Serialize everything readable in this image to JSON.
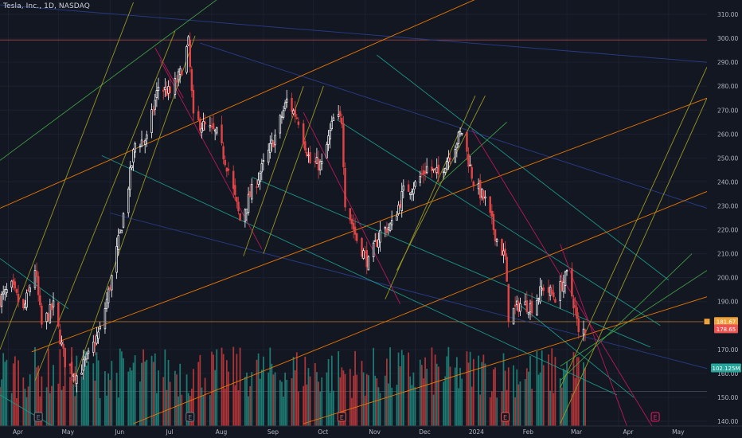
{
  "title": "Tesla, Inc., 1D, NASDAQ",
  "chart_data": {
    "type": "candlestick",
    "price_axis": {
      "ticks": [
        310,
        300,
        290,
        280,
        270,
        260,
        250,
        240,
        230,
        220,
        210,
        200,
        190,
        170,
        160,
        150,
        140
      ],
      "tick_labels": [
        "310.00",
        "300.00",
        "290.00",
        "280.00",
        "270.00",
        "260.00",
        "250.00",
        "240.00",
        "230.00",
        "220.00",
        "210.00",
        "200.00",
        "190.00",
        "170.00",
        "160.00",
        "150.00",
        "140.00"
      ],
      "range": [
        138,
        316
      ]
    },
    "time_axis": {
      "labels": [
        "Apr",
        "May",
        "Jun",
        "Jul",
        "Aug",
        "Sep",
        "Oct",
        "Nov",
        "Dec",
        "2024",
        "Feb",
        "Mar",
        "Apr",
        "May"
      ],
      "start": "2023-03-27",
      "end": "2024-05-24"
    },
    "badges": [
      {
        "text": "181.67",
        "color": "#f0a23a",
        "price": 181.67,
        "kind": "price"
      },
      {
        "text": "178.65",
        "color": "#ef5350",
        "price": 178.65,
        "kind": "price"
      },
      {
        "text": "102.125M",
        "color": "#26a69a",
        "price": 162.3,
        "kind": "volume"
      }
    ],
    "horizontal_levels": [
      {
        "price": 299.3,
        "color": "#b24a4a"
      },
      {
        "price": 181.6,
        "color": "#b8732d"
      },
      {
        "price": 152.5,
        "color": "#444a5a"
      }
    ],
    "earnings_markers": [
      {
        "date": "2023-04-19",
        "label": "E",
        "color": "#787b86"
      },
      {
        "date": "2023-07-19",
        "label": "E",
        "color": "#787b86"
      },
      {
        "date": "2023-10-18",
        "label": "E",
        "color": "#ef5350"
      },
      {
        "date": "2024-01-24",
        "label": "E",
        "color": "#ef5350"
      },
      {
        "date": "2024-04-23",
        "label": "E",
        "color": "#e91e63"
      }
    ],
    "trendlines": [
      {
        "color": "#2a3f8f",
        "p1": [
          "2023-03-27",
          314
        ],
        "p2": [
          "2024-05-24",
          290
        ]
      },
      {
        "color": "#2a3f8f",
        "p1": [
          "2023-07-25",
          298
        ],
        "p2": [
          "2024-05-24",
          229
        ]
      },
      {
        "color": "#2a3f8f",
        "p1": [
          "2023-06-01",
          227
        ],
        "p2": [
          "2024-05-24",
          162
        ]
      },
      {
        "color": "#1d9a8a",
        "p1": [
          "2023-03-27",
          208
        ],
        "p2": [
          "2023-05-07",
          187
        ]
      },
      {
        "color": "#1d9a8a",
        "p1": [
          "2023-05-27",
          251
        ],
        "p2": [
          "2024-03-31",
          151
        ]
      },
      {
        "color": "#1d9a8a",
        "p1": [
          "2023-11-08",
          293
        ],
        "p2": [
          "2024-05-01",
          199
        ]
      },
      {
        "color": "#1d9a8a",
        "p1": [
          "2023-10-15",
          266
        ],
        "p2": [
          "2024-04-26",
          180
        ]
      },
      {
        "color": "#1d9a8a",
        "p1": [
          "2023-03-27",
          151
        ],
        "p2": [
          "2023-05-05",
          135
        ]
      },
      {
        "color": "#1d9a8a",
        "p1": [
          "2024-02-01",
          189
        ],
        "p2": [
          "2024-04-10",
          150
        ]
      },
      {
        "color": "#1d9a8a",
        "p1": [
          "2023-08-25",
          242
        ],
        "p2": [
          "2024-04-20",
          171
        ]
      },
      {
        "color": "#43a047",
        "p1": [
          "2023-03-27",
          249
        ],
        "p2": [
          "2023-08-27",
          328
        ]
      },
      {
        "color": "#43a047",
        "p1": [
          "2023-12-15",
          239
        ],
        "p2": [
          "2024-01-25",
          265
        ]
      },
      {
        "color": "#43a047",
        "p1": [
          "2024-02-26",
          157
        ],
        "p2": [
          "2024-05-15",
          210
        ]
      },
      {
        "color": "#43a047",
        "p1": [
          "2024-02-26",
          163
        ],
        "p2": [
          "2024-05-24",
          203
        ]
      },
      {
        "color": "#f57c00",
        "p1": [
          "2023-03-27",
          229
        ],
        "p2": [
          "2024-02-20",
          330
        ]
      },
      {
        "color": "#f57c00",
        "p1": [
          "2023-04-15",
          169
        ],
        "p2": [
          "2024-05-24",
          275
        ]
      },
      {
        "color": "#f57c00",
        "p1": [
          "2023-06-15",
          139
        ],
        "p2": [
          "2024-05-24",
          236
        ]
      },
      {
        "color": "#f57c00",
        "p1": [
          "2023-09-25",
          139
        ],
        "p2": [
          "2024-05-24",
          192
        ]
      },
      {
        "color": "#c2185b",
        "p1": [
          "2023-07-01",
          291
        ],
        "p2": [
          "2023-08-31",
          212
        ]
      },
      {
        "color": "#c2185b",
        "p1": [
          "2023-09-25",
          269
        ],
        "p2": [
          "2023-11-22",
          189
        ]
      },
      {
        "color": "#c2185b",
        "p1": [
          "2024-01-04",
          262
        ],
        "p2": [
          "2024-04-21",
          138
        ]
      },
      {
        "color": "#c2185b",
        "p1": [
          "2024-02-26",
          214
        ],
        "p2": [
          "2024-04-06",
          138
        ]
      },
      {
        "color": "#c2185b",
        "p1": [
          "2023-06-28",
          296
        ],
        "p2": [
          "2023-07-15",
          275
        ]
      },
      {
        "color": "#9e9d24",
        "p1": [
          "2023-03-27",
          170
        ],
        "p2": [
          "2023-06-15",
          315
        ]
      },
      {
        "color": "#9e9d24",
        "p1": [
          "2023-04-17",
          157
        ],
        "p2": [
          "2023-07-10",
          303
        ]
      },
      {
        "color": "#9e9d24",
        "p1": [
          "2023-05-10",
          156
        ],
        "p2": [
          "2023-07-22",
          301
        ]
      },
      {
        "color": "#9e9d24",
        "p1": [
          "2023-08-20",
          209
        ],
        "p2": [
          "2023-09-25",
          280
        ]
      },
      {
        "color": "#9e9d24",
        "p1": [
          "2023-09-01",
          210
        ],
        "p2": [
          "2023-10-07",
          280
        ]
      },
      {
        "color": "#9e9d24",
        "p1": [
          "2023-11-13",
          191
        ],
        "p2": [
          "2024-01-06",
          276
        ]
      },
      {
        "color": "#9e9d24",
        "p1": [
          "2023-11-20",
          203
        ],
        "p2": [
          "2024-01-12",
          276
        ]
      },
      {
        "color": "#9e9d24",
        "p1": [
          "2024-02-26",
          154
        ],
        "p2": [
          "2024-05-24",
          288
        ]
      },
      {
        "color": "#9e9d24",
        "p1": [
          "2024-02-26",
          139
        ],
        "p2": [
          "2024-05-24",
          275
        ]
      }
    ],
    "price_path": [
      [
        "2023-03-27",
        191
      ],
      [
        "2023-04-03",
        196
      ],
      [
        "2023-04-10",
        186
      ],
      [
        "2023-04-17",
        204
      ],
      [
        "2023-04-21",
        180
      ],
      [
        "2023-04-28",
        188
      ],
      [
        "2023-05-05",
        165
      ],
      [
        "2023-05-12",
        159
      ],
      [
        "2023-05-19",
        167
      ],
      [
        "2023-05-26",
        178
      ],
      [
        "2023-06-02",
        200
      ],
      [
        "2023-06-09",
        226
      ],
      [
        "2023-06-16",
        256
      ],
      [
        "2023-06-23",
        258
      ],
      [
        "2023-06-30",
        280
      ],
      [
        "2023-07-07",
        277
      ],
      [
        "2023-07-13",
        285
      ],
      [
        "2023-07-18",
        298
      ],
      [
        "2023-07-21",
        266
      ],
      [
        "2023-07-28",
        263
      ],
      [
        "2023-08-04",
        260
      ],
      [
        "2023-08-11",
        245
      ],
      [
        "2023-08-18",
        224
      ],
      [
        "2023-08-25",
        236
      ],
      [
        "2023-09-01",
        247
      ],
      [
        "2023-09-08",
        259
      ],
      [
        "2023-09-15",
        274
      ],
      [
        "2023-09-22",
        266
      ],
      [
        "2023-09-29",
        248
      ],
      [
        "2023-10-06",
        247
      ],
      [
        "2023-10-13",
        266
      ],
      [
        "2023-10-18",
        266
      ],
      [
        "2023-10-20",
        232
      ],
      [
        "2023-10-27",
        216
      ],
      [
        "2023-11-03",
        206
      ],
      [
        "2023-11-10",
        219
      ],
      [
        "2023-11-17",
        222
      ],
      [
        "2023-11-24",
        236
      ],
      [
        "2023-12-01",
        239
      ],
      [
        "2023-12-08",
        246
      ],
      [
        "2023-12-15",
        243
      ],
      [
        "2023-12-22",
        252
      ],
      [
        "2023-12-29",
        261
      ],
      [
        "2024-01-05",
        240
      ],
      [
        "2024-01-12",
        232
      ],
      [
        "2024-01-19",
        216
      ],
      [
        "2024-01-24",
        208
      ],
      [
        "2024-01-26",
        184
      ],
      [
        "2024-02-02",
        189
      ],
      [
        "2024-02-09",
        188
      ],
      [
        "2024-02-16",
        196
      ],
      [
        "2024-02-23",
        192
      ],
      [
        "2024-03-01",
        201
      ],
      [
        "2024-03-06",
        187
      ],
      [
        "2024-03-08",
        176
      ],
      [
        "2024-03-12",
        178.65
      ]
    ],
    "series": [
      {
        "name": "",
        "kind": "candles",
        "up_color": "#ffffff",
        "down_color": "#e04444"
      },
      {
        "name": "",
        "kind": "volume",
        "up_color": "#1e8c80",
        "down_color": "#c9393b"
      }
    ]
  }
}
